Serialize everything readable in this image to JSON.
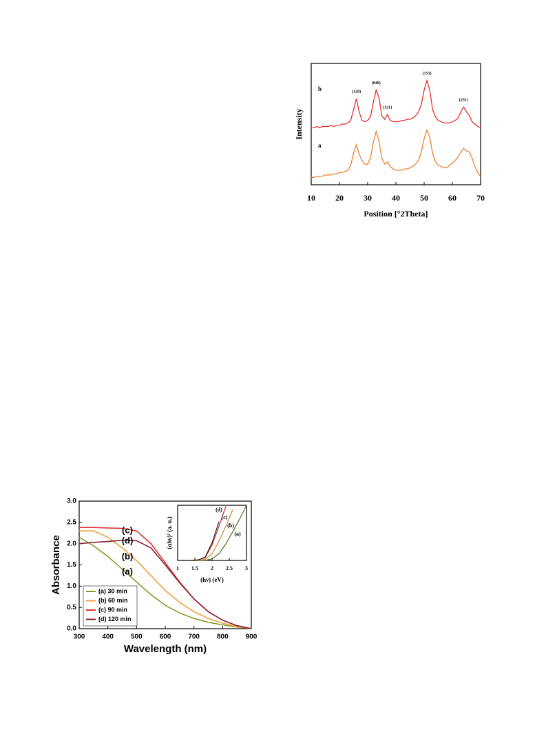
{
  "chart_data": [
    {
      "type": "line",
      "xlabel": "Position [°2Theta]",
      "ylabel": "Intensity",
      "x": [
        10,
        11,
        12,
        13,
        14,
        15,
        16,
        17,
        18,
        19,
        20,
        21,
        22,
        23,
        24,
        25,
        26,
        27,
        28,
        29,
        30,
        31,
        32,
        33,
        34,
        35,
        36,
        37,
        38,
        39,
        40,
        41,
        42,
        43,
        44,
        45,
        46,
        47,
        48,
        49,
        50,
        51,
        52,
        53,
        54,
        55,
        56,
        57,
        58,
        59,
        60,
        61,
        62,
        63,
        64,
        65,
        66,
        67,
        68,
        69,
        70
      ],
      "xlim": [
        10,
        70
      ],
      "xticks": [
        10,
        20,
        30,
        40,
        50,
        60,
        70
      ],
      "ylim": [
        0,
        100
      ],
      "series": [
        {
          "name": "a",
          "color": "#f07820",
          "values": [
            6,
            6,
            7,
            7,
            7,
            8,
            8,
            8,
            9,
            9,
            10,
            10,
            11,
            12,
            16,
            26,
            33,
            25,
            20,
            17,
            17,
            22,
            35,
            44,
            36,
            22,
            17,
            19,
            15,
            13,
            12,
            12,
            12,
            13,
            13,
            14,
            15,
            17,
            20,
            27,
            38,
            45,
            39,
            26,
            19,
            16,
            15,
            14,
            14,
            16,
            18,
            20,
            23,
            27,
            30,
            28,
            27,
            22,
            15,
            10,
            7
          ]
        },
        {
          "name": "b",
          "color": "#e8201c",
          "values": [
            47,
            47,
            48,
            47,
            48,
            48,
            48,
            49,
            48,
            49,
            49,
            50,
            50,
            51,
            53,
            62,
            71,
            60,
            53,
            52,
            53,
            56,
            68,
            78,
            72,
            57,
            54,
            58,
            53,
            52,
            52,
            52,
            53,
            53,
            54,
            54,
            55,
            57,
            60,
            66,
            78,
            86,
            78,
            62,
            56,
            53,
            52,
            51,
            51,
            51,
            52,
            53,
            55,
            60,
            64,
            60,
            57,
            52,
            50,
            48,
            47
          ]
        }
      ],
      "annotations": [
        {
          "text": "(120)",
          "x": 26
        },
        {
          "text": "(040)",
          "x": 33
        },
        {
          "text": "(131)",
          "x": 37
        },
        {
          "text": "(151)",
          "x": 51
        },
        {
          "text": "(251)",
          "x": 64
        }
      ]
    },
    {
      "type": "line",
      "xlabel": "Wavelength (nm)",
      "ylabel": "Absorbance",
      "x": [
        300,
        350,
        400,
        450,
        500,
        550,
        600,
        650,
        700,
        750,
        800,
        850,
        900
      ],
      "xlim": [
        300,
        900
      ],
      "xticks": [
        300,
        400,
        500,
        600,
        700,
        800,
        900
      ],
      "ylim": [
        0,
        3
      ],
      "yticks": [
        {
          "value": 0,
          "label": "0.0"
        },
        {
          "value": 0.5,
          "label": "0.5"
        },
        {
          "value": 1,
          "label": "1.0"
        },
        {
          "value": 1.5,
          "label": "1.5"
        },
        {
          "value": 2,
          "label": "2.0"
        },
        {
          "value": 2.5,
          "label": "2.5"
        },
        {
          "value": 3,
          "label": "3.0"
        }
      ],
      "legend": "lower left",
      "series": [
        {
          "name": "(a) 30 min",
          "label": "(a)",
          "color": "#8a9a2a",
          "values": [
            2.15,
            1.95,
            1.7,
            1.4,
            1.1,
            0.8,
            0.55,
            0.37,
            0.24,
            0.15,
            0.09,
            0.04,
            0
          ]
        },
        {
          "name": "(b) 60 min",
          "label": "(b)",
          "color": "#f0a040",
          "values": [
            2.3,
            2.3,
            2.15,
            1.9,
            1.6,
            1.25,
            0.9,
            0.62,
            0.4,
            0.24,
            0.13,
            0.05,
            0
          ]
        },
        {
          "name": "(c) 90 min",
          "label": "(c)",
          "color": "#e03030",
          "values": [
            2.38,
            2.38,
            2.37,
            2.36,
            2.3,
            2.0,
            1.55,
            1.1,
            0.7,
            0.4,
            0.2,
            0.07,
            0
          ]
        },
        {
          "name": "(d) 120 min",
          "label": "(d)",
          "color": "#8b2030",
          "values": [
            2.0,
            2.03,
            2.05,
            2.08,
            2.07,
            1.9,
            1.5,
            1.08,
            0.7,
            0.4,
            0.2,
            0.07,
            0
          ]
        }
      ]
    },
    {
      "type": "line",
      "xlabel": "(hν) (eV)",
      "ylabel": "(αhν)² (a. u.)",
      "x": [
        1.4,
        1.6,
        1.8,
        2.0,
        2.2,
        2.4,
        2.6,
        2.8,
        3.0
      ],
      "xlim": [
        1,
        3
      ],
      "xticks": [
        1,
        1.5,
        2,
        2.5,
        3
      ],
      "ylim": [
        0,
        100
      ],
      "series": [
        {
          "label": "(a)",
          "color": "#556b2f",
          "values": [
            0,
            0,
            0,
            3,
            12,
            30,
            52,
            75,
            100
          ]
        },
        {
          "label": "(b)",
          "color": "#c08a30",
          "values": [
            0,
            0,
            2,
            12,
            35,
            62,
            92,
            null,
            null
          ]
        },
        {
          "label": "(c)",
          "color": "#d02828",
          "values": [
            0,
            1,
            5,
            28,
            62,
            98,
            null,
            null,
            null
          ]
        },
        {
          "label": "(d)",
          "color": "#222222",
          "values": [
            0,
            1,
            6,
            32,
            70,
            null,
            null,
            null,
            null
          ]
        }
      ]
    }
  ]
}
